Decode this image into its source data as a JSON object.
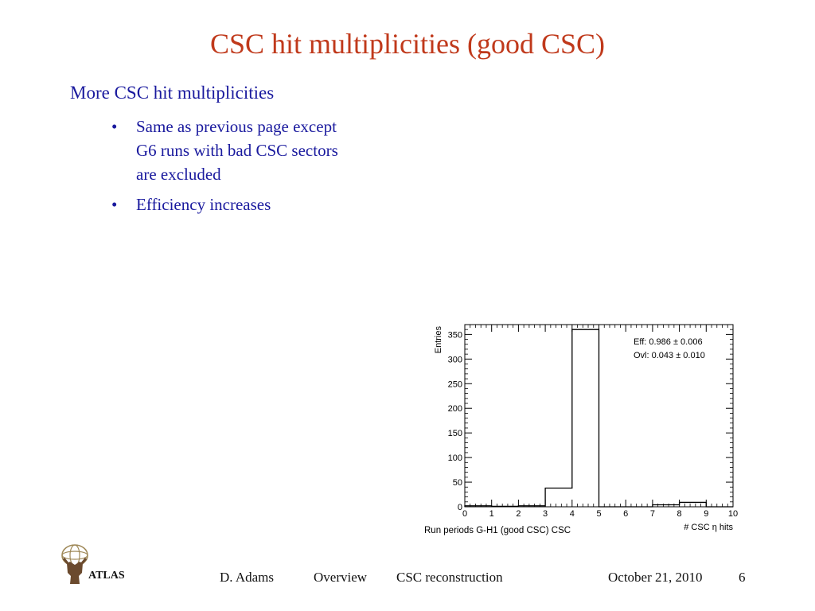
{
  "slide": {
    "title": "CSC hit multiplicities (good CSC)",
    "heading": "More CSC hit multiplicities",
    "bullets": [
      {
        "lines": [
          "Same as previous page except",
          "G6 runs with bad CSC sectors",
          "are excluded"
        ]
      },
      {
        "lines": [
          "Efficiency increases"
        ]
      }
    ],
    "bullet_marker": "•"
  },
  "chart_data": {
    "type": "bar",
    "title": "",
    "xlabel": "# CSC η hits",
    "ylabel": "Entries",
    "bottom_caption": "Run periods G-H1 (good CSC) CSC",
    "bin_edges": [
      0,
      1,
      2,
      3,
      4,
      5,
      6,
      7,
      8,
      9,
      10
    ],
    "values": [
      2,
      1,
      2,
      38,
      360,
      0,
      0,
      4,
      9,
      0
    ],
    "xlim": [
      0,
      10
    ],
    "ylim": [
      0,
      370
    ],
    "yticks": [
      0,
      50,
      100,
      150,
      200,
      250,
      300,
      350
    ],
    "xticks": [
      0,
      1,
      2,
      3,
      4,
      5,
      6,
      7,
      8,
      9,
      10
    ],
    "stats": [
      "Eff: 0.986 ± 0.006",
      "Ovl: 0.043 ± 0.010"
    ]
  },
  "footer": {
    "author": "D. Adams",
    "section": "Overview",
    "topic": "CSC reconstruction",
    "date": "October 21, 2010",
    "page": "6",
    "logo_text": "ATLAS"
  },
  "colors": {
    "title": "#c0391b",
    "body_text": "#1a1a9e",
    "axis": "#000000"
  }
}
